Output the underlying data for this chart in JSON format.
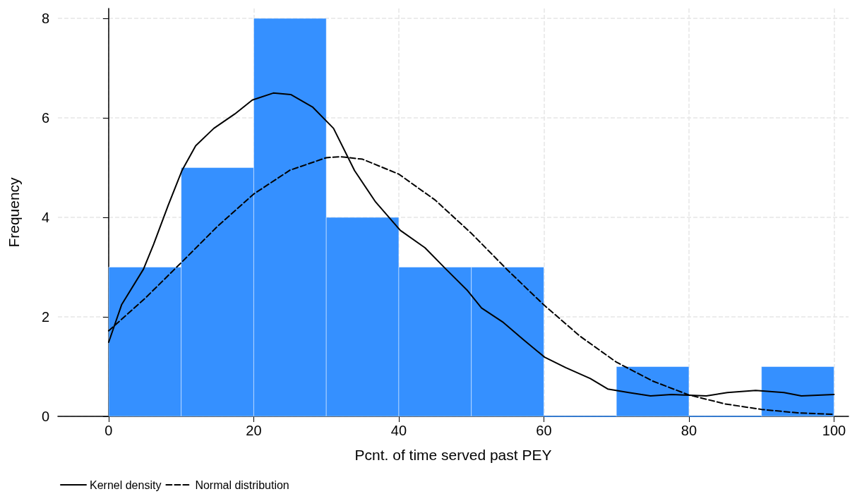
{
  "chart_data": {
    "type": "histogram",
    "xlabel": "Pcnt. of time served past PEY",
    "ylabel": "Frequency",
    "bins": [
      0,
      10,
      20,
      30,
      40,
      50,
      60,
      70,
      80,
      90,
      100
    ],
    "values": [
      3,
      5,
      8,
      4,
      3,
      3,
      0,
      1,
      0,
      1
    ],
    "color": "#3590ff",
    "series": [
      {
        "name": "Kernel density",
        "type": "line",
        "color": "#000000",
        "line_style": "solid",
        "x": [
          0,
          1.8,
          4.8,
          6.2,
          8.2,
          10.1,
          12,
          14.5,
          17.4,
          19.8,
          22.7,
          25.1,
          28.1,
          31,
          33.9,
          36.8,
          40.2,
          43.6,
          46.5,
          49.4,
          51.4,
          54.3,
          57.2,
          60.1,
          63,
          66.4,
          68.8,
          71.7,
          74.7,
          77.6,
          82.4,
          85.3,
          89.2,
          93.1,
          95.5,
          100
        ],
        "values": [
          1.49,
          2.25,
          2.96,
          3.46,
          4.24,
          4.94,
          5.44,
          5.79,
          6.08,
          6.36,
          6.5,
          6.47,
          6.22,
          5.79,
          4.94,
          4.31,
          3.74,
          3.39,
          2.96,
          2.54,
          2.18,
          1.9,
          1.54,
          1.19,
          0.98,
          0.76,
          0.55,
          0.48,
          0.41,
          0.44,
          0.41,
          0.48,
          0.52,
          0.48,
          0.41,
          0.44
        ]
      },
      {
        "name": "Normal distribution",
        "type": "line",
        "color": "#000000",
        "line_style": "dashed",
        "x": [
          0,
          5,
          10,
          15,
          20,
          25,
          30,
          32,
          35,
          40,
          45,
          50,
          55,
          60,
          65,
          70,
          75,
          80,
          85,
          90,
          95,
          100
        ],
        "values": [
          1.72,
          2.37,
          3.09,
          3.82,
          4.47,
          4.95,
          5.2,
          5.22,
          5.17,
          4.87,
          4.35,
          3.68,
          2.94,
          2.24,
          1.61,
          1.09,
          0.71,
          0.43,
          0.25,
          0.14,
          0.07,
          0.04
        ]
      }
    ],
    "xlim": [
      -7,
      102
    ],
    "xticks": [
      0,
      20,
      40,
      60,
      80,
      100
    ],
    "ylim": [
      0,
      8.2
    ],
    "yticks": [
      0,
      2,
      4,
      6,
      8
    ],
    "grid": true,
    "legend": "bottom left"
  }
}
